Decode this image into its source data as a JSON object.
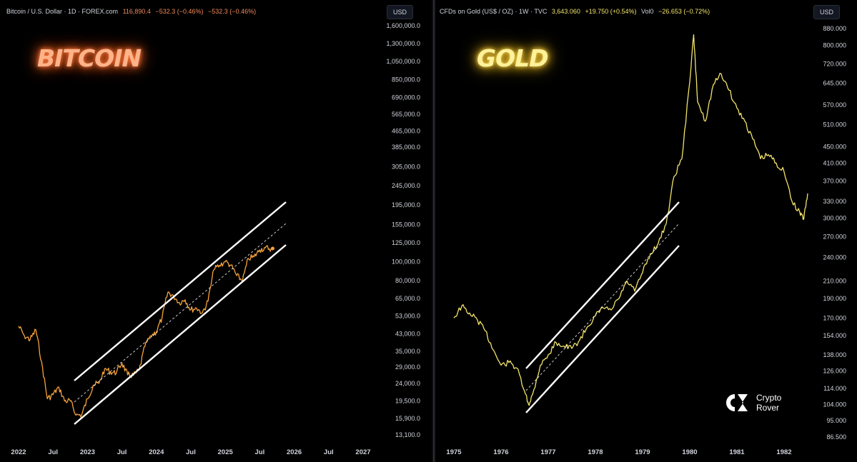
{
  "left": {
    "title_symbol": "Bitcoin / U.S. Dollar · 1D · FOREX.com",
    "ohlc": [
      "116,890.4",
      "−532.3 (−0.46%)",
      "−532.3 (−0.46%)"
    ],
    "big_title": "BITCOIN",
    "currency": "USD",
    "colors": {
      "line": "#f7a33c",
      "title": "#ff9a5a",
      "channel": "#ffffff",
      "axis_text": "#d1d4dc"
    }
  },
  "right": {
    "title_symbol": "CFDs on Gold (US$ / OZ) · 1W · TVC",
    "ohlc": [
      "3,643.060",
      "+19.750 (+0.54%)",
      "Vol0",
      "−26.653 (−0.72%)"
    ],
    "big_title": "GOLD",
    "currency": "USD",
    "colors": {
      "line": "#f3e46a",
      "title": "#ffe66b",
      "channel": "#ffffff",
      "axis_text": "#d1d4dc"
    }
  },
  "logo": {
    "line1": "Crypto",
    "line2": "Rover"
  },
  "chart_data": [
    {
      "type": "line",
      "title": "Bitcoin / U.S. Dollar · 1D · FOREX.com",
      "y_scale": "log",
      "ylim": [
        13100,
        1600000
      ],
      "y_ticks": [
        "1,600,000.0",
        "1,300,000.0",
        "1,050,000.0",
        "850,000.0",
        "690,000.0",
        "565,000.0",
        "465,000.0",
        "385,000.0",
        "305,000.0",
        "245,000.0",
        "195,000.0",
        "155,000.0",
        "125,000.0",
        "100,000.0",
        "80,000.0",
        "65,000.0",
        "53,000.0",
        "43,000.0",
        "35,000.0",
        "29,000.0",
        "24,000.0",
        "19,500.0",
        "15,900.0",
        "13,100.0"
      ],
      "x_ticks": [
        "2022",
        "Jul",
        "2023",
        "Jul",
        "2024",
        "Jul",
        "2025",
        "Jul",
        "2026",
        "Jul",
        "2027"
      ],
      "series": [
        {
          "x": [
            "2022-01",
            "2022-02",
            "2022-03",
            "2022-04",
            "2022-05",
            "2022-06",
            "2022-07",
            "2022-08",
            "2022-09",
            "2022-10",
            "2022-11",
            "2022-12",
            "2023-01",
            "2023-02",
            "2023-03",
            "2023-04",
            "2023-05",
            "2023-06",
            "2023-07",
            "2023-08",
            "2023-09",
            "2023-10",
            "2023-11",
            "2023-12",
            "2024-01",
            "2024-02",
            "2024-03",
            "2024-04",
            "2024-05",
            "2024-06",
            "2024-07",
            "2024-08",
            "2024-09",
            "2024-10",
            "2024-11",
            "2024-12",
            "2025-01",
            "2025-02",
            "2025-03",
            "2025-04",
            "2025-05",
            "2025-06",
            "2025-07",
            "2025-08",
            "2025-09"
          ],
          "y": [
            47000,
            42000,
            40000,
            45000,
            31000,
            20000,
            21000,
            23000,
            19500,
            19500,
            16500,
            16600,
            20000,
            23500,
            24000,
            28500,
            27500,
            27000,
            30500,
            26500,
            26300,
            28000,
            37000,
            42000,
            44000,
            52000,
            70000,
            67000,
            62000,
            64000,
            57000,
            58000,
            55000,
            63000,
            91000,
            96000,
            100000,
            96000,
            85000,
            80000,
            104000,
            106000,
            115000,
            118000,
            116890
          ]
        }
      ],
      "channel": {
        "type": "parallel",
        "midline": "dashed"
      }
    },
    {
      "type": "line",
      "title": "CFDs on Gold (US$ / OZ) · 1W · TVC",
      "y_scale": "log",
      "ylim": [
        86.5,
        880
      ],
      "y_ticks": [
        "880.000",
        "800.000",
        "720.000",
        "645.000",
        "570.000",
        "510.000",
        "450.000",
        "410.000",
        "370.000",
        "330.000",
        "300.000",
        "270.000",
        "240.000",
        "210.000",
        "190.000",
        "170.000",
        "154.000",
        "138.000",
        "126.000",
        "114.000",
        "104.000",
        "95.000",
        "86.500"
      ],
      "x_ticks": [
        "1975",
        "1976",
        "1977",
        "1978",
        "1979",
        "1980",
        "1981",
        "1982"
      ],
      "series": [
        {
          "x": [
            "1975-01",
            "1975-03",
            "1975-05",
            "1975-07",
            "1975-09",
            "1975-11",
            "1976-01",
            "1976-03",
            "1976-05",
            "1976-07",
            "1976-08",
            "1976-09",
            "1976-11",
            "1977-01",
            "1977-03",
            "1977-05",
            "1977-07",
            "1977-09",
            "1977-11",
            "1978-01",
            "1978-03",
            "1978-05",
            "1978-07",
            "1978-09",
            "1978-11",
            "1979-01",
            "1979-03",
            "1979-05",
            "1979-07",
            "1979-09",
            "1979-11",
            "1980-01",
            "1980-02",
            "1980-03",
            "1980-05",
            "1980-07",
            "1980-09",
            "1980-11",
            "1981-01",
            "1981-03",
            "1981-05",
            "1981-07",
            "1981-09",
            "1981-11",
            "1982-01",
            "1982-03",
            "1982-05",
            "1982-06",
            "1982-07"
          ],
          "y": [
            170,
            182,
            175,
            168,
            158,
            142,
            130,
            132,
            128,
            112,
            104,
            110,
            130,
            138,
            148,
            145,
            143,
            150,
            162,
            172,
            180,
            178,
            190,
            210,
            198,
            220,
            245,
            260,
            290,
            380,
            420,
            650,
            850,
            580,
            520,
            640,
            680,
            620,
            560,
            520,
            470,
            420,
            430,
            410,
            390,
            330,
            310,
            298,
            345
          ]
        }
      ],
      "channel": {
        "type": "parallel",
        "midline": "dashed"
      }
    }
  ]
}
